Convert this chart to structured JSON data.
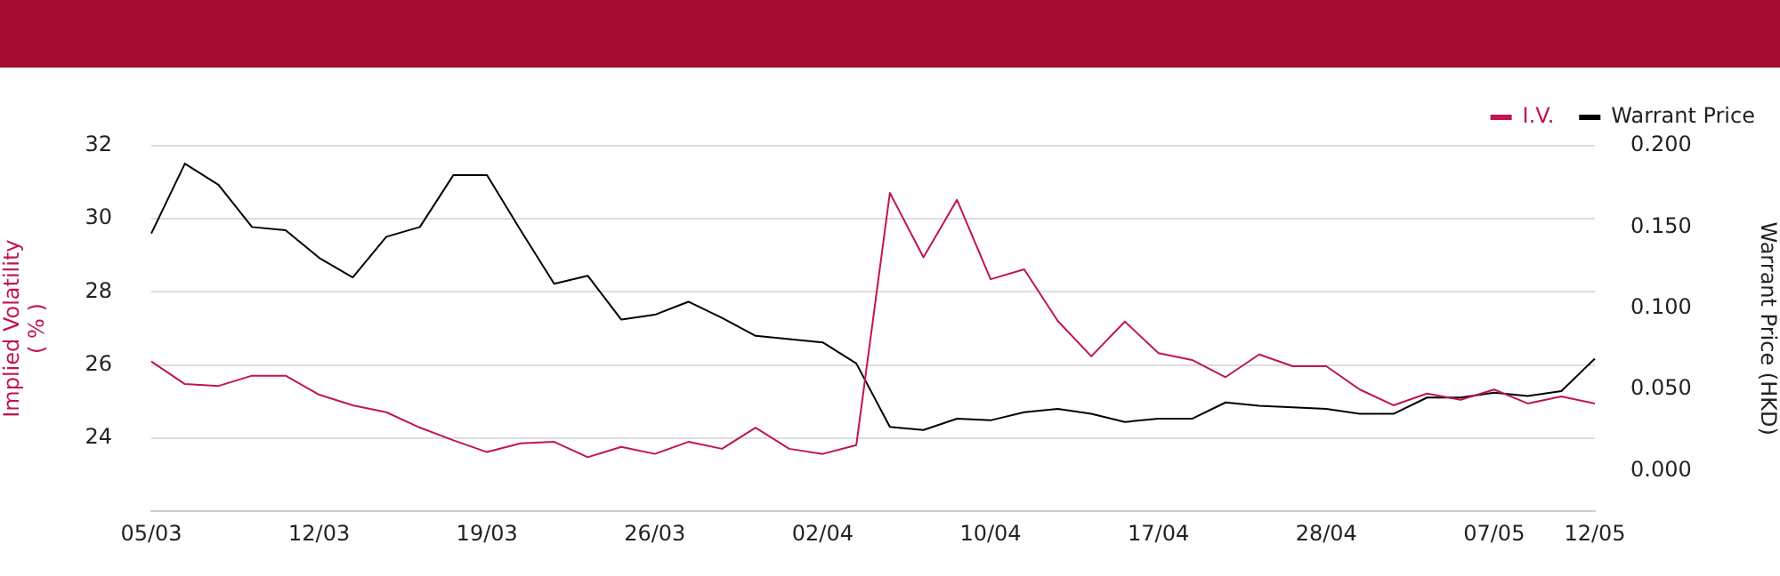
{
  "chart_data": {
    "type": "line",
    "categories": [
      "05/03",
      null,
      null,
      null,
      null,
      "12/03",
      null,
      null,
      null,
      null,
      "19/03",
      null,
      null,
      null,
      null,
      "26/03",
      null,
      null,
      null,
      null,
      "02/04",
      null,
      null,
      null,
      null,
      "10/04",
      null,
      null,
      null,
      null,
      "17/04",
      null,
      null,
      null,
      null,
      "28/04",
      null,
      null,
      null,
      null,
      "07/05",
      null,
      null,
      "12/05"
    ],
    "series": [
      {
        "name": "I.V.",
        "color": "#c0164a",
        "values": [
          26.1,
          25.48,
          25.43,
          25.71,
          25.71,
          25.19,
          24.9,
          24.71,
          24.29,
          23.94,
          23.62,
          23.86,
          23.9,
          23.48,
          23.76,
          23.57,
          23.9,
          23.71,
          24.29,
          23.71,
          23.57,
          23.81,
          30.71,
          28.95,
          30.52,
          28.35,
          28.62,
          27.21,
          26.24,
          27.19,
          26.33,
          26.14,
          25.67,
          26.29,
          25.97,
          25.97,
          25.33,
          24.9,
          25.22,
          25.05,
          25.33,
          24.95,
          25.14,
          24.95
        ]
      },
      {
        "name": "Warrant Price",
        "color": "#000000",
        "axis": "y2",
        "values": [
          0.146,
          0.189,
          0.176,
          0.15,
          0.148,
          0.131,
          0.119,
          0.144,
          0.15,
          0.182,
          0.182,
          0.148,
          0.115,
          0.12,
          0.093,
          0.096,
          0.104,
          0.094,
          0.083,
          0.081,
          0.079,
          0.066,
          0.027,
          0.025,
          0.032,
          0.031,
          0.036,
          0.038,
          0.035,
          0.03,
          0.032,
          0.032,
          0.042,
          0.04,
          0.039,
          0.038,
          0.035,
          0.035,
          0.045,
          0.045,
          0.048,
          0.046,
          0.049,
          0.069
        ]
      }
    ],
    "ylabel": "Implied Volatility\n( % )",
    "y2label": "Warrant Price (HKD)",
    "ylim": [
      22,
      32
    ],
    "yticks": [
      24,
      26,
      28,
      30,
      32
    ],
    "y2lim": [
      -0.025,
      0.2
    ],
    "y2ticks": [
      {
        "value": 0,
        "label": "0.000"
      },
      {
        "value": 0.05,
        "label": "0.050"
      },
      {
        "value": 0.1,
        "label": "0.100"
      },
      {
        "value": 0.15,
        "label": "0.150"
      },
      {
        "value": 0.2,
        "label": "0.200"
      }
    ],
    "grid": "y",
    "legend": "top right",
    "marker": "none",
    "line_style": "solid"
  }
}
